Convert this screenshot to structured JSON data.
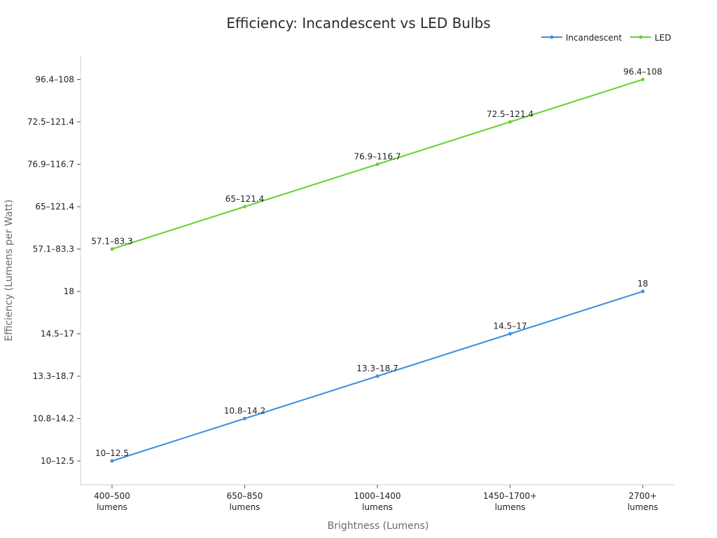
{
  "chart_data": {
    "type": "line",
    "title": "Efficiency: Incandescent vs LED Bulbs",
    "xlabel": "Brightness (Lumens)",
    "ylabel": "Efficiency (Lumens per Watt)",
    "categories": [
      [
        "400–500",
        "lumens"
      ],
      [
        "650–850",
        "lumens"
      ],
      [
        "1000–1400",
        "lumens"
      ],
      [
        "1450–1700+",
        "lumens"
      ],
      [
        "2700+",
        "lumens"
      ]
    ],
    "y_categories": [
      "10–12.5",
      "10.8–14.2",
      "13.3–18.7",
      "14.5–17",
      "18",
      "57.1–83.3",
      "65–121.4",
      "76.9–116.7",
      "72.5–121.4",
      "96.4–108"
    ],
    "legend_position": "top-right",
    "grid": false,
    "series": [
      {
        "name": "Incandescent",
        "color": "#3b8ee0",
        "values": [
          "10–12.5",
          "10.8–14.2",
          "13.3–18.7",
          "14.5–17",
          "18"
        ]
      },
      {
        "name": "LED",
        "color": "#66d12f",
        "values": [
          "57.1–83.3",
          "65–121.4",
          "76.9–116.7",
          "72.5–121.4",
          "96.4–108"
        ]
      }
    ]
  }
}
